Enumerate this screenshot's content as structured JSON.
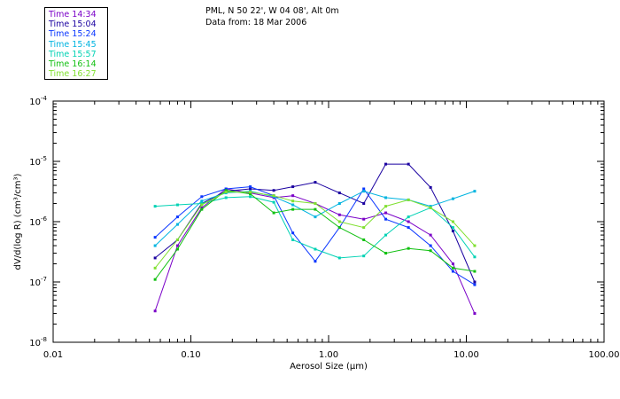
{
  "header": {
    "location": "PML, N 50 22', W 04 08', Alt 0m",
    "date": "Data from: 18 Mar 2006"
  },
  "chart_data": {
    "type": "line",
    "xscale": "log",
    "yscale": "log",
    "xlabel": "Aerosol Size (µm)",
    "ylabel": "dV/d(log R) (cm³/cm³)",
    "xlim": [
      0.01,
      100
    ],
    "ylim": [
      1e-08,
      0.0001
    ],
    "x_ticks": [
      {
        "v": 0.01,
        "label": "0.01"
      },
      {
        "v": 0.1,
        "label": "0.10"
      },
      {
        "v": 1,
        "label": "1.00"
      },
      {
        "v": 10,
        "label": "10.00"
      },
      {
        "v": 100,
        "label": "100.00"
      }
    ],
    "y_ticks": [
      {
        "v": 1e-08,
        "exp": "-8"
      },
      {
        "v": 1e-07,
        "exp": "-7"
      },
      {
        "v": 1e-06,
        "exp": "-6"
      },
      {
        "v": 1e-05,
        "exp": "-5"
      },
      {
        "v": 0.0001,
        "exp": "-4"
      }
    ],
    "x": [
      0.055,
      0.08,
      0.12,
      0.18,
      0.27,
      0.4,
      0.55,
      0.8,
      1.2,
      1.8,
      2.6,
      3.8,
      5.5,
      8,
      11.5
    ],
    "series": [
      {
        "name": "Time 14:34",
        "color": "#7a00c8",
        "values": [
          3.3e-08,
          4e-07,
          1.7e-06,
          3.5e-06,
          3e-06,
          2.5e-06,
          2.7e-06,
          2e-06,
          1.3e-06,
          1.1e-06,
          1.4e-06,
          1e-06,
          6e-07,
          2e-07,
          3e-08
        ]
      },
      {
        "name": "Time 15:04",
        "color": "#1a00a0",
        "values": [
          2.5e-07,
          5e-07,
          2e-06,
          3.2e-06,
          3.5e-06,
          3.3e-06,
          3.8e-06,
          4.5e-06,
          3e-06,
          2e-06,
          9e-06,
          9e-06,
          3.7e-06,
          7e-07,
          1e-07
        ]
      },
      {
        "name": "Time 15:24",
        "color": "#0a36ff",
        "values": [
          5.5e-07,
          1.2e-06,
          2.6e-06,
          3.5e-06,
          3.8e-06,
          2.7e-06,
          6.5e-07,
          2.2e-07,
          8e-07,
          3.5e-06,
          1.1e-06,
          8e-07,
          4e-07,
          1.5e-07,
          9e-08
        ]
      },
      {
        "name": "Time 15:45",
        "color": "#00b4e0",
        "values": [
          4e-07,
          9e-07,
          2.2e-06,
          3e-06,
          3.2e-06,
          2.6e-06,
          1.9e-06,
          1.2e-06,
          2e-06,
          3.2e-06,
          2.5e-06,
          2.3e-06,
          1.8e-06,
          2.4e-06,
          3.2e-06
        ]
      },
      {
        "name": "Time 15:57",
        "color": "#00d2b4",
        "values": [
          1.8e-06,
          1.9e-06,
          2e-06,
          2.5e-06,
          2.6e-06,
          2.1e-06,
          5e-07,
          3.5e-07,
          2.5e-07,
          2.7e-07,
          6e-07,
          1.2e-06,
          1.7e-06,
          8e-07,
          2.6e-07
        ]
      },
      {
        "name": "Time 16:14",
        "color": "#10c010",
        "values": [
          1.1e-07,
          3.5e-07,
          1.6e-06,
          3.3e-06,
          2.9e-06,
          1.4e-06,
          1.6e-06,
          1.6e-06,
          8e-07,
          5e-07,
          3e-07,
          3.6e-07,
          3.3e-07,
          1.7e-07,
          1.5e-07
        ]
      },
      {
        "name": "Time 16:27",
        "color": "#80e030",
        "values": [
          1.7e-07,
          5e-07,
          1.9e-06,
          3.1e-06,
          3.1e-06,
          2.7e-06,
          2.2e-06,
          2e-06,
          1e-06,
          8e-07,
          1.8e-06,
          2.3e-06,
          1.7e-06,
          1e-06,
          4e-07
        ]
      }
    ]
  }
}
